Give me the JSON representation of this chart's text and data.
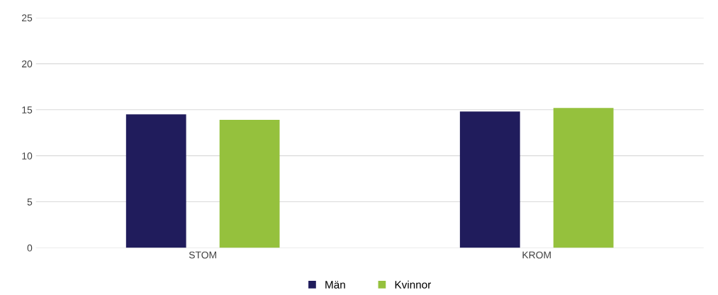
{
  "chart_data": {
    "type": "bar",
    "categories": [
      "STOM",
      "KROM"
    ],
    "series": [
      {
        "name": "Män",
        "color": "#201c5c",
        "values": [
          14.5,
          14.8
        ]
      },
      {
        "name": "Kvinnor",
        "color": "#95c13d",
        "values": [
          13.9,
          15.2
        ]
      }
    ],
    "ylim": [
      0,
      25
    ],
    "yticks": [
      0,
      5,
      10,
      15,
      20,
      25
    ],
    "grid": "y",
    "legend": "bottom"
  }
}
